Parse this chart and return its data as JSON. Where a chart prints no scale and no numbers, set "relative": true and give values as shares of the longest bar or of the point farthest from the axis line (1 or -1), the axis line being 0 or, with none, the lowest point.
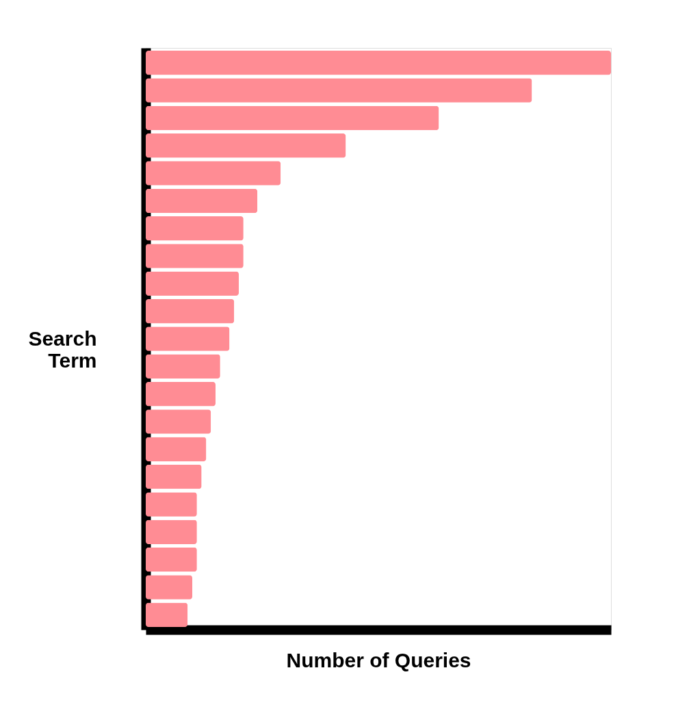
{
  "chart_data": {
    "type": "bar",
    "orientation": "horizontal",
    "relative": true,
    "xlabel": "Number of Queries",
    "ylabel": "Search Term",
    "categories": [
      null,
      null,
      null,
      null,
      null,
      null,
      null,
      null,
      null,
      null,
      null,
      null,
      null,
      null,
      null,
      null,
      null,
      null,
      null,
      null,
      null
    ],
    "values": [
      1.0,
      0.83,
      0.63,
      0.43,
      0.29,
      0.24,
      0.21,
      0.21,
      0.2,
      0.19,
      0.18,
      0.16,
      0.15,
      0.14,
      0.13,
      0.12,
      0.11,
      0.11,
      0.11,
      0.1,
      0.09
    ],
    "color": "#ff8c94",
    "grid": false
  }
}
